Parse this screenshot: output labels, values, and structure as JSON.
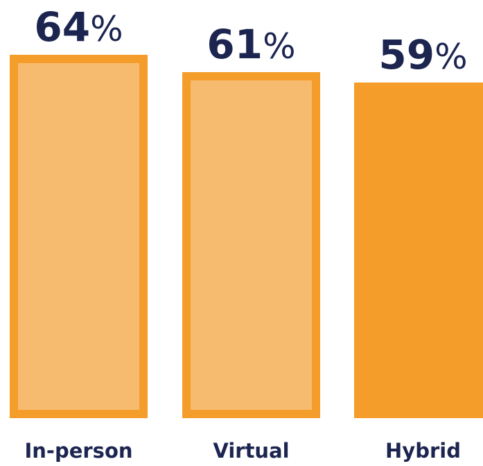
{
  "chart_data": {
    "type": "bar",
    "categories": [
      "In-person",
      "Virtual",
      "Hybrid"
    ],
    "values": [
      64,
      61,
      59
    ],
    "value_labels": [
      {
        "number": "64",
        "suffix": "%"
      },
      {
        "number": "61",
        "suffix": "%"
      },
      {
        "number": "59",
        "suffix": "%"
      }
    ],
    "bar_styles": [
      "outlined",
      "outlined",
      "solid"
    ],
    "ylim": [
      0,
      64
    ],
    "grid": false,
    "legend": "none",
    "title": "",
    "xlabel": "",
    "ylabel": ""
  },
  "colors": {
    "bar_fill_light": "#f6bb6e",
    "bar_stroke": "#f59d2a",
    "bar_solid": "#f59d2a",
    "value_text": "#1c2550",
    "label_text": "#1c2550",
    "background": "#ffffff"
  }
}
